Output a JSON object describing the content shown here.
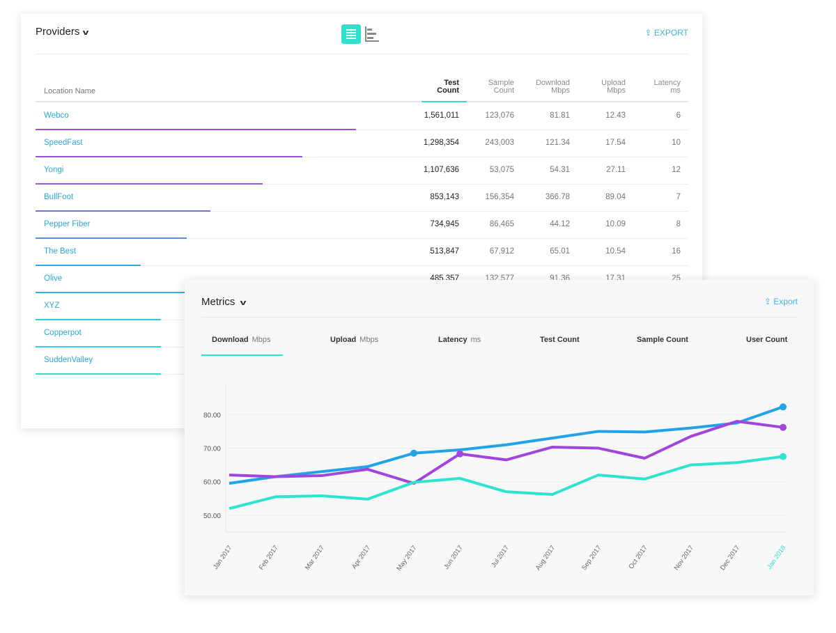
{
  "providers": {
    "title": "Providers",
    "export_label": "EXPORT",
    "columns": {
      "location": "Location Name",
      "test_count": [
        "Test",
        "Count"
      ],
      "sample_count": [
        "Sample",
        "Count"
      ],
      "download": [
        "Download",
        "Mbps"
      ],
      "upload": [
        "Upload",
        "Mbps"
      ],
      "latency": [
        "Latency",
        "ms"
      ]
    },
    "rows": [
      {
        "name": "Webco",
        "test": "1,561,011",
        "sample": "123,076",
        "down": "81.81",
        "up": "12.43",
        "lat": "6",
        "share": 1561011
      },
      {
        "name": "SpeedFast",
        "test": "1,298,354",
        "sample": "243,003",
        "down": "121.34",
        "up": "17.54",
        "lat": "10",
        "share": 1298354
      },
      {
        "name": "Yongi",
        "test": "1,107,636",
        "sample": "53,075",
        "down": "54.31",
        "up": "27.11",
        "lat": "12",
        "share": 1107636
      },
      {
        "name": "BullFoot",
        "test": "853,143",
        "sample": "156,354",
        "down": "366.78",
        "up": "89.04",
        "lat": "7",
        "share": 853143
      },
      {
        "name": "Pepper Fiber",
        "test": "734,945",
        "sample": "86,465",
        "down": "44.12",
        "up": "10.09",
        "lat": "8",
        "share": 734945
      },
      {
        "name": "The Best",
        "test": "513,847",
        "sample": "67,912",
        "down": "65.01",
        "up": "10.54",
        "lat": "16",
        "share": 513847
      },
      {
        "name": "Olive",
        "test": "485,357",
        "sample": "132,577",
        "down": "91.36",
        "up": "17.31",
        "lat": "25"
      },
      {
        "name": "XYZ"
      },
      {
        "name": "Copperpot"
      },
      {
        "name": "SuddenValley"
      }
    ],
    "bar_colors": [
      "#9b4ddb",
      "#9550dc",
      "#8a5bdc",
      "#6f73e0",
      "#5a8ae3",
      "#35a5e8",
      "#2fb3e6",
      "#2fc8dc",
      "#30d6d3",
      "#30dccd"
    ]
  },
  "metrics": {
    "title": "Metrics",
    "export_label": "Export",
    "tabs": [
      {
        "label": "Download",
        "unit": "Mbps"
      },
      {
        "label": "Upload",
        "unit": "Mbps"
      },
      {
        "label": "Latency",
        "unit": "ms"
      },
      {
        "label": "Test Count",
        "unit": ""
      },
      {
        "label": "Sample Count",
        "unit": ""
      },
      {
        "label": "User Count",
        "unit": ""
      }
    ]
  },
  "chart_data": {
    "type": "line",
    "x": [
      "Jan 2017",
      "Feb 2017",
      "Mar 2017",
      "Apr 2017",
      "May 2017",
      "Jun 2017",
      "Jul 2017",
      "Aug 2017",
      "Sep 2017",
      "Oct 2017",
      "Nov 2017",
      "Dec 2017",
      "Jan 2018"
    ],
    "yticks": [
      "50.00",
      "60.00",
      "70.00",
      "80.00"
    ],
    "ylim": [
      45,
      89
    ],
    "series": [
      {
        "name": "blue",
        "color": "#22a3e8",
        "values": [
          59.5,
          61.5,
          63,
          64.5,
          68.5,
          69.5,
          71,
          73,
          75,
          74.8,
          76,
          77.5,
          82.3
        ],
        "markers": [
          4,
          12
        ]
      },
      {
        "name": "purple",
        "color": "#a146dc",
        "values": [
          62,
          61.5,
          61.8,
          63.7,
          59.5,
          68.3,
          66.5,
          70.3,
          70,
          67,
          73.5,
          78,
          76.2
        ],
        "markers": [
          5,
          12
        ]
      },
      {
        "name": "teal",
        "color": "#2fe3cf",
        "values": [
          52,
          55.5,
          55.8,
          54.8,
          59.8,
          61,
          57,
          56.2,
          62,
          60.8,
          65,
          65.7,
          67.5
        ],
        "markers": [
          12
        ]
      }
    ],
    "highlight_label": "Jan 2018"
  }
}
